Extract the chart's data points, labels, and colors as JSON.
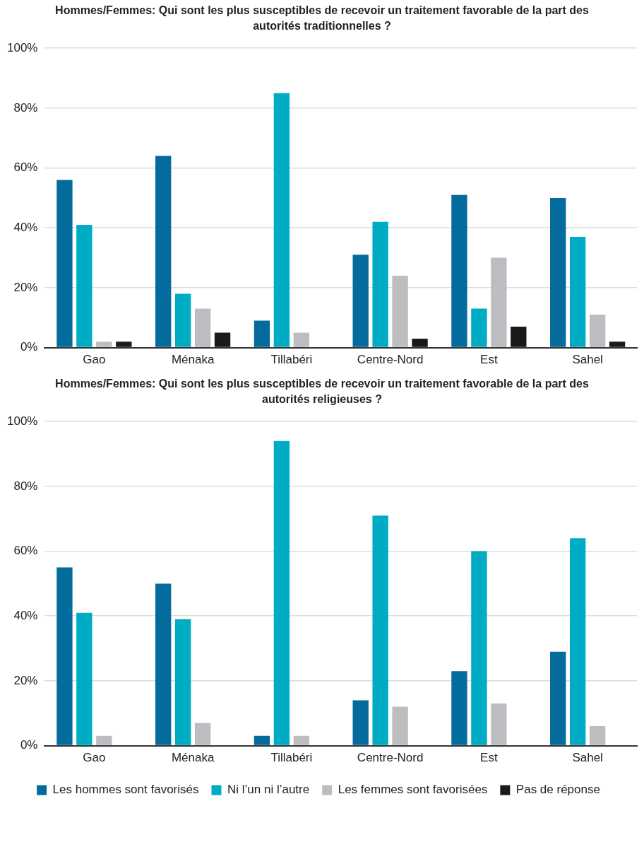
{
  "chart_data": [
    {
      "type": "bar",
      "title": "Hommes/Femmes: Qui sont les plus susceptibles de recevoir un traitement favorable de la part des autorités traditionnelles ?",
      "categories": [
        "Gao",
        "Ménaka",
        "Tillabéri",
        "Centre-Nord",
        "Est",
        "Sahel"
      ],
      "series": [
        {
          "color": "#036c9c",
          "values": [
            56,
            64,
            9,
            31,
            51,
            50
          ]
        },
        {
          "color": "#00acc4",
          "values": [
            41,
            18,
            85,
            42,
            13,
            37
          ]
        },
        {
          "color": "#bcbdc0",
          "values": [
            2,
            13,
            5,
            24,
            30,
            11
          ]
        },
        {
          "color": "#1a1a1a",
          "values": [
            2,
            5,
            0,
            3,
            7,
            2
          ]
        }
      ],
      "ylim": [
        0,
        100
      ],
      "yticks": [
        {
          "value": 0,
          "label": "0%"
        },
        {
          "value": 20,
          "label": "20%"
        },
        {
          "value": 40,
          "label": "40%"
        },
        {
          "value": 60,
          "label": "60%"
        },
        {
          "value": 80,
          "label": "80%"
        },
        {
          "value": 100,
          "label": "100%"
        }
      ],
      "grid": "y",
      "legend": false
    },
    {
      "type": "bar",
      "title": "Hommes/Femmes: Qui sont les plus susceptibles de recevoir un traitement favorable de la part des autorités religieuses ?",
      "categories": [
        "Gao",
        "Ménaka",
        "Tillabéri",
        "Centre-Nord",
        "Est",
        "Sahel"
      ],
      "series": [
        {
          "name": "Les hommes sont favorisés",
          "color": "#036c9c",
          "values": [
            55,
            50,
            3,
            14,
            23,
            29
          ]
        },
        {
          "name": "Ni l’un ni l’autre",
          "color": "#00acc4",
          "values": [
            41,
            39,
            94,
            71,
            60,
            64
          ]
        },
        {
          "name": "Les femmes sont favorisées",
          "color": "#bcbdc0",
          "values": [
            3,
            7,
            3,
            12,
            13,
            6
          ]
        },
        {
          "name": "Pas de réponse",
          "color": "#1a1a1a",
          "values": [
            0,
            0,
            0,
            0,
            0,
            0
          ]
        }
      ],
      "ylim": [
        0,
        100
      ],
      "yticks": [
        {
          "value": 0,
          "label": "0%"
        },
        {
          "value": 20,
          "label": "20%"
        },
        {
          "value": 40,
          "label": "40%"
        },
        {
          "value": 60,
          "label": "60%"
        },
        {
          "value": 80,
          "label": "80%"
        },
        {
          "value": 100,
          "label": "100%"
        }
      ],
      "grid": "y",
      "legend": "bottom"
    }
  ]
}
